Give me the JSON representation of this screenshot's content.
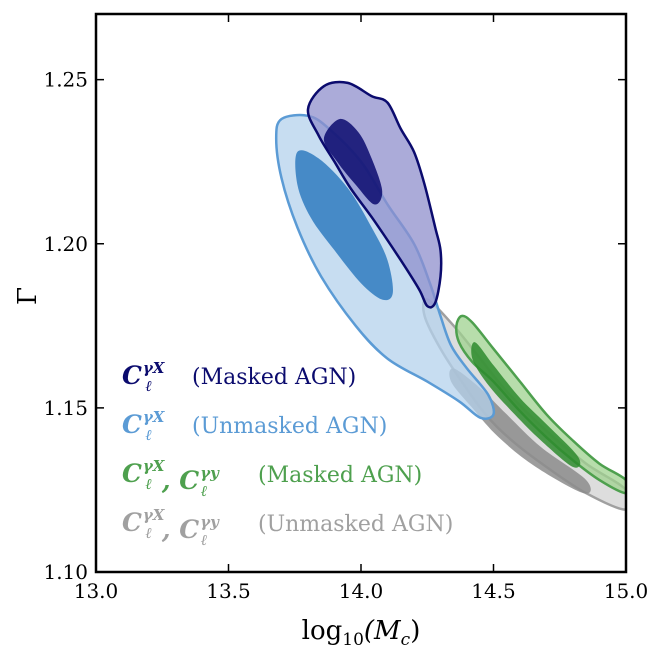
{
  "chart_data": {
    "type": "contour",
    "xlabel": "log10(Mc)",
    "xlabel_parts": {
      "pre": "log",
      "sub": "10",
      "post": "(M",
      "post_sub": "c",
      "close": ")"
    },
    "ylabel": "Γ",
    "xlim": [
      13.0,
      15.0
    ],
    "ylim": [
      1.1,
      1.27
    ],
    "x_ticks": [
      13.0,
      13.5,
      14.0,
      14.5,
      15.0
    ],
    "x_tick_labels": [
      "13.0",
      "13.5",
      "14.0",
      "14.5",
      "15.0"
    ],
    "y_ticks": [
      1.1,
      1.15,
      1.2,
      1.25
    ],
    "y_tick_labels": [
      "1.10",
      "1.15",
      "1.20",
      "1.25"
    ],
    "grid": false,
    "legend_position": "bottom-left",
    "series": [
      {
        "legend_symbol": "C_ℓ^γX",
        "legend_label": "(Masked AGN)",
        "color": "#0b0b6e",
        "fill_outer": "#8f8fcc",
        "fill_inner": "#0b0b6e",
        "contours": {
          "outer": [
            [
              13.95,
              1.249
            ],
            [
              14.04,
              1.245
            ],
            [
              14.1,
              1.243
            ],
            [
              14.15,
              1.235
            ],
            [
              14.2,
              1.228
            ],
            [
              14.24,
              1.218
            ],
            [
              14.28,
              1.205
            ],
            [
              14.3,
              1.198
            ],
            [
              14.3,
              1.19
            ],
            [
              14.28,
              1.182
            ],
            [
              14.25,
              1.181
            ],
            [
              14.22,
              1.186
            ],
            [
              14.15,
              1.195
            ],
            [
              14.05,
              1.207
            ],
            [
              13.96,
              1.217
            ],
            [
              13.9,
              1.225
            ],
            [
              13.84,
              1.233
            ],
            [
              13.8,
              1.241
            ],
            [
              13.86,
              1.248
            ]
          ],
          "inner": [
            [
              13.92,
              1.238
            ],
            [
              13.99,
              1.234
            ],
            [
              14.04,
              1.226
            ],
            [
              14.08,
              1.216
            ],
            [
              14.05,
              1.212
            ],
            [
              13.98,
              1.218
            ],
            [
              13.91,
              1.225
            ],
            [
              13.86,
              1.232
            ]
          ]
        }
      },
      {
        "legend_symbol": "C_ℓ^γX",
        "legend_label": "(Unmasked AGN)",
        "color": "#5b9bd5",
        "fill_outer": "#b4d2ec",
        "fill_inner": "#2f7bc0",
        "contours": {
          "outer": [
            [
              13.7,
              1.238
            ],
            [
              13.8,
              1.239
            ],
            [
              13.88,
              1.235
            ],
            [
              14.0,
              1.225
            ],
            [
              14.1,
              1.212
            ],
            [
              14.2,
              1.2
            ],
            [
              14.26,
              1.188
            ],
            [
              14.3,
              1.178
            ],
            [
              14.34,
              1.169
            ],
            [
              14.4,
              1.162
            ],
            [
              14.48,
              1.154
            ],
            [
              14.5,
              1.148
            ],
            [
              14.45,
              1.147
            ],
            [
              14.37,
              1.152
            ],
            [
              14.25,
              1.158
            ],
            [
              14.1,
              1.165
            ],
            [
              13.98,
              1.175
            ],
            [
              13.85,
              1.19
            ],
            [
              13.76,
              1.205
            ],
            [
              13.7,
              1.22
            ],
            [
              13.68,
              1.232
            ]
          ],
          "inner": [
            [
              13.76,
              1.228
            ],
            [
              13.84,
              1.226
            ],
            [
              13.95,
              1.217
            ],
            [
              14.04,
              1.205
            ],
            [
              14.1,
              1.195
            ],
            [
              14.12,
              1.185
            ],
            [
              14.08,
              1.183
            ],
            [
              14.0,
              1.188
            ],
            [
              13.9,
              1.198
            ],
            [
              13.81,
              1.208
            ],
            [
              13.76,
              1.218
            ]
          ]
        }
      },
      {
        "legend_symbol": "C_ℓ^γX, C_ℓ^γy",
        "legend_label": "(Masked AGN)",
        "color": "#4ea04e",
        "fill_outer": "#9fd18f",
        "fill_inner": "#2e8b2e",
        "contours": {
          "outer": [
            [
              14.38,
              1.178
            ],
            [
              14.42,
              1.176
            ],
            [
              14.5,
              1.168
            ],
            [
              14.6,
              1.158
            ],
            [
              14.7,
              1.148
            ],
            [
              14.8,
              1.14
            ],
            [
              14.9,
              1.133
            ],
            [
              15.0,
              1.128
            ],
            [
              15.0,
              1.124
            ],
            [
              14.9,
              1.128
            ],
            [
              14.8,
              1.134
            ],
            [
              14.7,
              1.141
            ],
            [
              14.6,
              1.149
            ],
            [
              14.5,
              1.158
            ],
            [
              14.42,
              1.164
            ],
            [
              14.37,
              1.17
            ],
            [
              14.36,
              1.175
            ]
          ],
          "inner": [
            [
              14.43,
              1.17
            ],
            [
              14.5,
              1.163
            ],
            [
              14.6,
              1.153
            ],
            [
              14.7,
              1.145
            ],
            [
              14.82,
              1.135
            ],
            [
              14.8,
              1.132
            ],
            [
              14.68,
              1.14
            ],
            [
              14.58,
              1.148
            ],
            [
              14.48,
              1.157
            ],
            [
              14.42,
              1.165
            ]
          ]
        }
      },
      {
        "legend_symbol": "C_ℓ^γX, C_ℓ^γy",
        "legend_label": "(Unmasked AGN)",
        "color": "#a0a0a0",
        "fill_outer": "#d2d2d2",
        "fill_inner": "#8c8c8c",
        "contours": {
          "outer": [
            [
              14.25,
              1.183
            ],
            [
              14.35,
              1.175
            ],
            [
              14.45,
              1.165
            ],
            [
              14.55,
              1.155
            ],
            [
              14.7,
              1.143
            ],
            [
              14.85,
              1.133
            ],
            [
              15.0,
              1.125
            ],
            [
              15.0,
              1.119
            ],
            [
              14.85,
              1.124
            ],
            [
              14.7,
              1.132
            ],
            [
              14.57,
              1.14
            ],
            [
              14.47,
              1.148
            ],
            [
              14.38,
              1.158
            ],
            [
              14.3,
              1.168
            ],
            [
              14.24,
              1.178
            ]
          ],
          "inner": [
            [
              14.35,
              1.162
            ],
            [
              14.45,
              1.156
            ],
            [
              14.55,
              1.148
            ],
            [
              14.68,
              1.138
            ],
            [
              14.85,
              1.128
            ],
            [
              14.84,
              1.124
            ],
            [
              14.66,
              1.132
            ],
            [
              14.52,
              1.141
            ],
            [
              14.42,
              1.15
            ],
            [
              14.34,
              1.158
            ]
          ]
        }
      }
    ]
  }
}
